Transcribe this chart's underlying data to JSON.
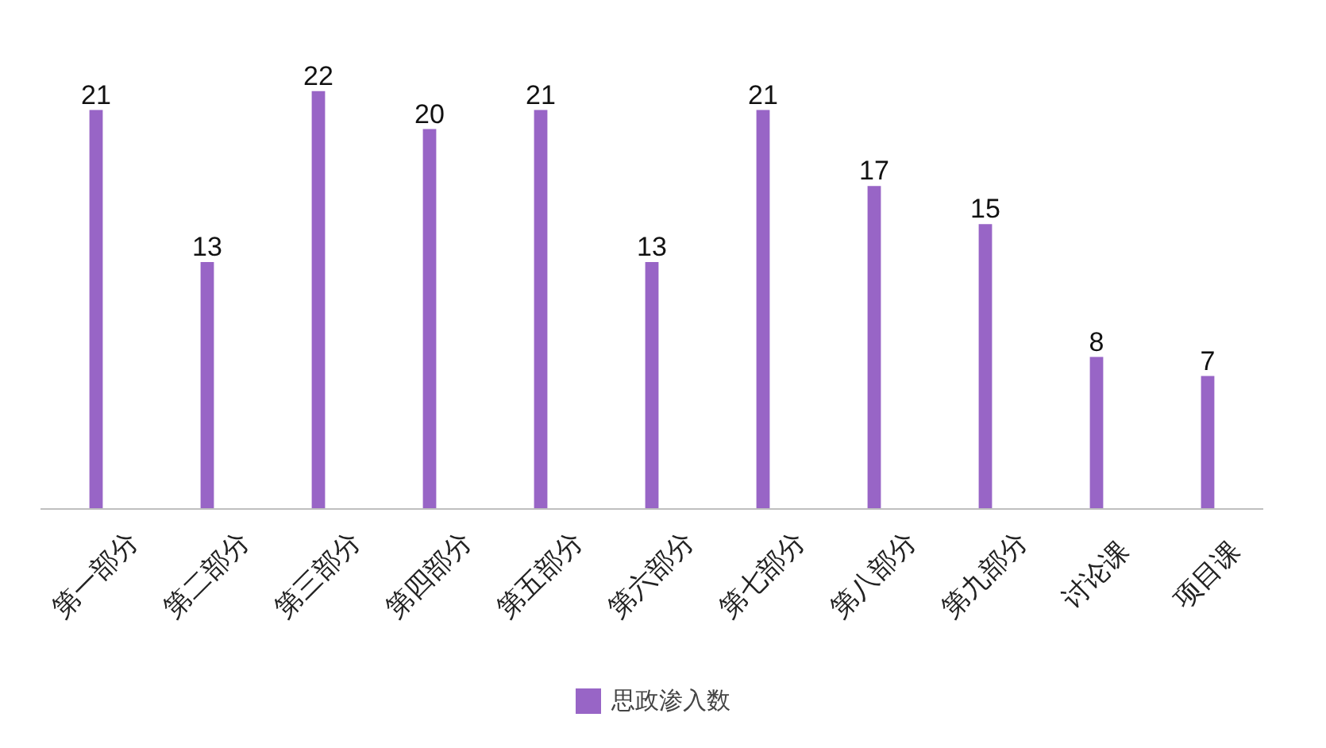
{
  "chart_data": {
    "type": "bar",
    "categories": [
      "第一部分",
      "第二部分",
      "第三部分",
      "第四部分",
      "第五部分",
      "第六部分",
      "第七部分",
      "第八部分",
      "第九部分",
      "讨论课",
      "项目课"
    ],
    "series": [
      {
        "name": "思政渗入数",
        "color": "#7e3fb8",
        "values": [
          21,
          13,
          22,
          20,
          21,
          13,
          21,
          17,
          15,
          8,
          7
        ]
      }
    ],
    "data_labels": true,
    "legend": "bottom",
    "grid": false
  }
}
